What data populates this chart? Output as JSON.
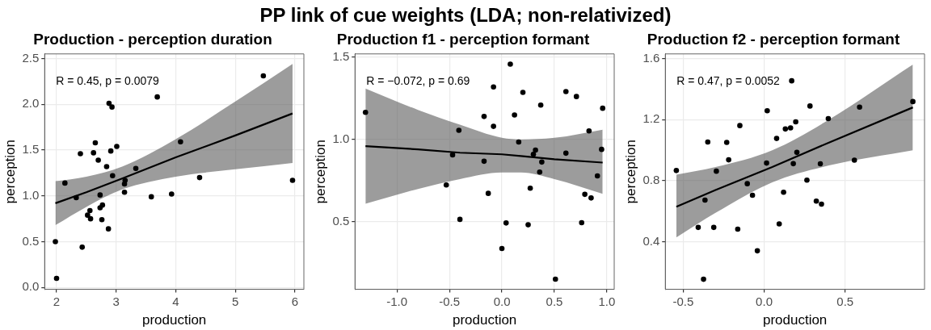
{
  "chart_data": [
    {
      "type": "scatter",
      "title": "Production - perception duration",
      "xlabel": "production",
      "ylabel": "perception",
      "annotations": [
        "PP link of cue weights (LDA; non-relativized)",
        "R = 0.45, p = 0.0079"
      ],
      "xlim": [
        1.8,
        6.15
      ],
      "ylim": [
        -0.02,
        2.55
      ],
      "xticks": [
        2,
        3,
        4,
        5,
        6
      ],
      "yticks": [
        {
          "value": 0,
          "label": "0.0"
        },
        {
          "value": 0.5,
          "label": "0.5"
        },
        {
          "value": 1,
          "label": "1.0"
        },
        {
          "value": 1.5,
          "label": "1.5"
        },
        {
          "value": 2,
          "label": "2.0"
        },
        {
          "value": 2.5,
          "label": "2.5"
        }
      ],
      "grid": true,
      "legend": false,
      "series": [
        {
          "marker": "circle",
          "color": "#000000",
          "x": [
            1.98,
            2.0,
            2.14,
            2.33,
            2.4,
            2.43,
            2.52,
            2.56,
            2.57,
            2.62,
            2.65,
            2.7,
            2.73,
            2.73,
            2.77,
            2.76,
            2.84,
            2.87,
            2.88,
            2.93,
            2.91,
            2.94,
            3.01,
            3.14,
            3.14,
            3.15,
            3.33,
            3.59,
            3.69,
            3.93,
            4.08,
            4.4,
            5.47,
            5.96
          ],
          "values": [
            0.5,
            0.1,
            1.14,
            0.98,
            1.46,
            0.44,
            0.79,
            0.84,
            0.75,
            1.47,
            1.58,
            1.39,
            1.01,
            0.87,
            0.9,
            0.74,
            1.32,
            0.64,
            2.01,
            1.97,
            1.49,
            1.22,
            1.54,
            1.04,
            1.13,
            1.17,
            1.3,
            0.99,
            2.08,
            1.02,
            1.59,
            1.2,
            2.31,
            1.17
          ]
        },
        {
          "type": "line",
          "color": "#000000",
          "x": [
            1.98,
            2.5,
            3.1,
            4.0,
            5.0,
            5.96
          ],
          "values": [
            0.92,
            1.04,
            1.19,
            1.42,
            1.66,
            1.9
          ],
          "lower": [
            0.68,
            0.88,
            1.07,
            1.21,
            1.29,
            1.36
          ],
          "upper": [
            1.16,
            1.21,
            1.32,
            1.62,
            2.03,
            2.44
          ]
        }
      ]
    },
    {
      "type": "scatter",
      "title": "Production f1 - perception formant",
      "xlabel": "production",
      "ylabel": "perception",
      "annotations": [
        "R = −0.072, p = 0.69"
      ],
      "xlim": [
        -1.4,
        1.07
      ],
      "ylim": [
        0.09,
        1.52
      ],
      "xticks": [
        {
          "value": -1,
          "label": "-1.0"
        },
        {
          "value": -0.5,
          "label": "-0.5"
        },
        {
          "value": 0,
          "label": "0.0"
        },
        {
          "value": 0.5,
          "label": "0.5"
        },
        {
          "value": 1,
          "label": "1.0"
        }
      ],
      "yticks": [
        {
          "value": 0.5,
          "label": "0.5"
        },
        {
          "value": 1,
          "label": "1.0"
        },
        {
          "value": 1.5,
          "label": "1.5"
        }
      ],
      "grid": true,
      "legend": false,
      "series": [
        {
          "marker": "circle",
          "color": "#000000",
          "x": [
            -1.3,
            -0.53,
            -0.47,
            -0.41,
            -0.4,
            -0.17,
            -0.17,
            -0.13,
            -0.08,
            -0.08,
            0.0,
            0.04,
            0.08,
            0.12,
            0.16,
            0.2,
            0.25,
            0.27,
            0.3,
            0.32,
            0.36,
            0.37,
            0.38,
            0.51,
            0.61,
            0.61,
            0.71,
            0.76,
            0.79,
            0.83,
            0.85,
            0.91,
            0.95,
            0.96
          ],
          "values": [
            1.165,
            0.724,
            0.907,
            1.056,
            0.515,
            1.14,
            0.868,
            0.673,
            1.08,
            1.319,
            0.338,
            0.493,
            1.458,
            1.149,
            0.985,
            1.286,
            0.482,
            0.704,
            0.91,
            0.936,
            0.802,
            1.209,
            0.863,
            0.152,
            1.291,
            0.917,
            1.261,
            0.495,
            0.667,
            1.052,
            0.645,
            0.779,
            0.94,
            1.19
          ]
        },
        {
          "type": "line",
          "color": "#000000",
          "x": [
            -1.3,
            -0.8,
            -0.4,
            0.0,
            0.18,
            0.5,
            0.96
          ],
          "values": [
            0.96,
            0.94,
            0.92,
            0.91,
            0.9,
            0.88,
            0.86
          ],
          "lower": [
            0.61,
            0.7,
            0.76,
            0.8,
            0.8,
            0.76,
            0.67
          ],
          "upper": [
            1.31,
            1.18,
            1.09,
            1.01,
            1.0,
            1.01,
            1.06
          ]
        }
      ]
    },
    {
      "type": "scatter",
      "title": "Production f2 - perception formant",
      "xlabel": "production",
      "ylabel": "perception",
      "annotations": [
        "R = 0.47, p = 0.0052"
      ],
      "xlim": [
        -0.61,
        0.99
      ],
      "ylim": [
        0.09,
        1.63
      ],
      "xticks": [
        {
          "value": -0.5,
          "label": "-0.5"
        },
        {
          "value": 0,
          "label": "0.0"
        },
        {
          "value": 0.5,
          "label": "0.5"
        }
      ],
      "yticks": [
        {
          "value": 0.4,
          "label": "0.4"
        },
        {
          "value": 0.8,
          "label": "0.8"
        },
        {
          "value": 1.2,
          "label": "1.2"
        },
        {
          "value": 1.6,
          "label": "1.6"
        }
      ],
      "grid": true,
      "legend": false,
      "series": [
        {
          "marker": "circle",
          "color": "#000000",
          "x": [
            -0.542,
            -0.407,
            -0.374,
            -0.365,
            -0.348,
            -0.311,
            -0.295,
            -0.231,
            -0.219,
            -0.163,
            -0.15,
            -0.104,
            -0.072,
            -0.042,
            0.015,
            0.019,
            0.077,
            0.093,
            0.12,
            0.131,
            0.163,
            0.17,
            0.18,
            0.195,
            0.202,
            0.264,
            0.283,
            0.322,
            0.347,
            0.354,
            0.396,
            0.557,
            0.589,
            0.918
          ],
          "values": [
            0.867,
            0.495,
            0.156,
            0.674,
            1.054,
            0.495,
            0.863,
            1.051,
            0.937,
            0.484,
            1.161,
            0.781,
            0.705,
            0.342,
            0.916,
            1.258,
            1.077,
            0.518,
            0.725,
            1.139,
            1.146,
            1.454,
            0.912,
            1.186,
            0.986,
            0.804,
            1.289,
            0.667,
            0.911,
            0.647,
            1.207,
            0.935,
            1.282,
            1.318
          ]
        },
        {
          "type": "line",
          "color": "#000000",
          "x": [
            -0.542,
            -0.3,
            0.05,
            0.4,
            0.918
          ],
          "values": [
            0.63,
            0.74,
            0.89,
            1.05,
            1.28
          ],
          "lower": [
            0.43,
            0.59,
            0.79,
            0.9,
            1.0
          ],
          "upper": [
            0.84,
            0.89,
            1.0,
            1.2,
            1.56
          ]
        }
      ]
    }
  ]
}
